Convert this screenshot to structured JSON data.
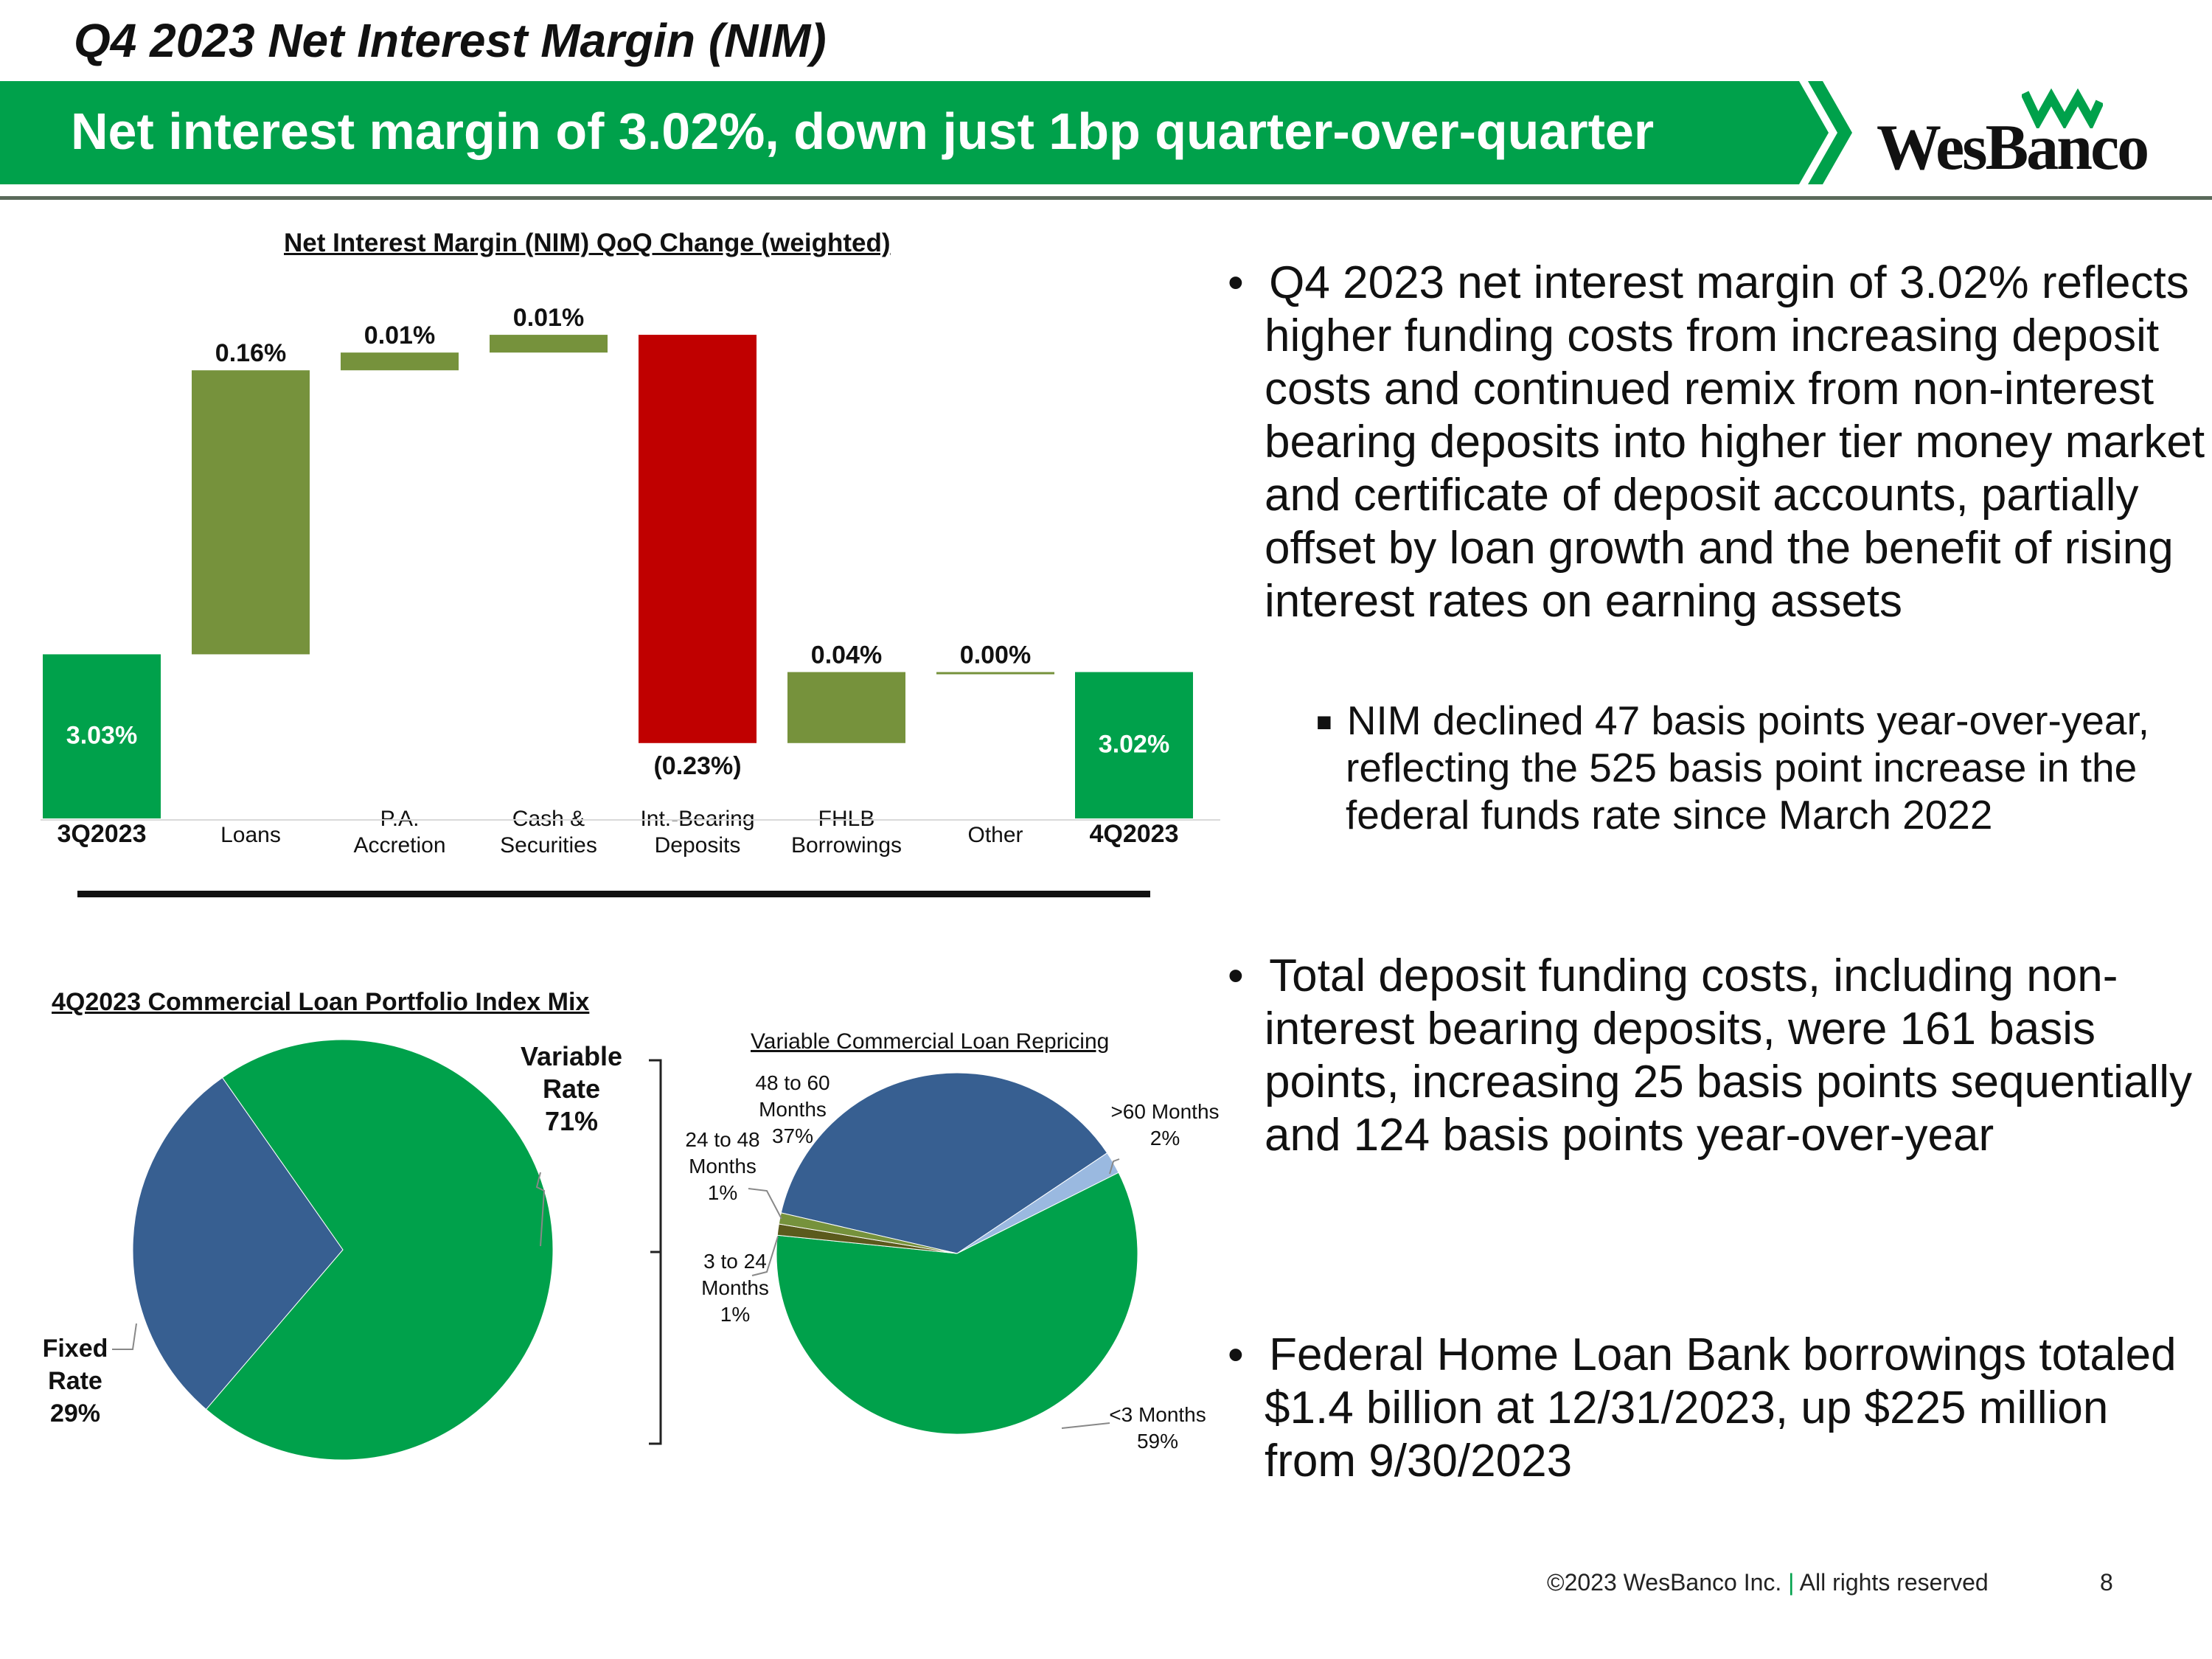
{
  "header": {
    "slide_title": "Q4 2023 Net Interest Margin (NIM)",
    "banner_text": "Net interest margin of 3.02%, down just 1bp quarter-over-quarter",
    "logo_text": "WesBanco",
    "brand_color": "#00a14b"
  },
  "waterfall": {
    "title": "Net Interest Margin (NIM) QoQ Change (weighted)",
    "chart_data": {
      "type": "bar",
      "categories": [
        "3Q2023",
        "Loans",
        "P.A.\nAccretion",
        "Cash &\nSecurities",
        "Int.-Bearing\nDeposits",
        "FHLB\nBorrowings",
        "Other",
        "4Q2023"
      ],
      "values": [
        3.03,
        0.16,
        0.01,
        0.01,
        -0.23,
        0.04,
        0.0,
        3.02
      ],
      "labels": [
        "3.03%",
        "0.16%",
        "0.01%",
        "0.01%",
        "(0.23%)",
        "0.04%",
        "0.00%",
        "3.02%"
      ],
      "kinds": [
        "total",
        "increase",
        "increase",
        "increase",
        "decrease",
        "increase",
        "increase",
        "total"
      ],
      "colors": {
        "total": "#00a14b",
        "increase": "#76923c",
        "decrease": "#c00000"
      },
      "ylabel": "",
      "xlabel": ""
    }
  },
  "index_mix": {
    "title": "4Q2023 Commercial Loan Portfolio Index Mix",
    "chart_data": {
      "type": "pie",
      "slices": [
        {
          "name": "Variable\nRate",
          "value": 71,
          "label": "71%",
          "color": "#00a14b"
        },
        {
          "name": "Fixed\nRate",
          "value": 29,
          "label": "29%",
          "color": "#375f91"
        }
      ]
    }
  },
  "repricing": {
    "title": "Variable Commercial Loan Repricing",
    "chart_data": {
      "type": "pie",
      "slices": [
        {
          "name": "48 to 60\nMonths",
          "value": 37,
          "label": "37%",
          "color": "#375f91"
        },
        {
          "name": ">60 Months",
          "value": 2,
          "label": "2%",
          "color": "#9ab9e0"
        },
        {
          "name": "<3 Months",
          "value": 59,
          "label": "59%",
          "color": "#00a14b"
        },
        {
          "name": "3 to 24\nMonths",
          "value": 1,
          "label": "1%",
          "color": "#5b5a1c"
        },
        {
          "name": "24 to 48\nMonths",
          "value": 1,
          "label": "1%",
          "color": "#76923c"
        }
      ]
    }
  },
  "bullets": {
    "b1": "Q4 2023 net interest margin of 3.02% reflects higher funding costs from increasing deposit costs and continued remix from non-interest bearing deposits into higher tier money market and certificate of deposit accounts, partially offset by loan growth and the benefit of rising interest rates on earning assets",
    "b1_sub": "NIM declined 47 basis points year-over-year, reflecting the 525 basis point increase in the federal funds rate since March 2022",
    "b2": "Total deposit funding costs, including non-interest bearing deposits, were 161 basis points, increasing 25 basis points sequentially and 124 basis points year-over-year",
    "b3": "Federal Home Loan Bank borrowings totaled $1.4 billion at 12/31/2023, up $225 million from 9/30/2023"
  },
  "footer": {
    "copyright": "©2023 WesBanco Inc.",
    "separator": "|",
    "rights": "All rights reserved",
    "page_number": "8"
  }
}
